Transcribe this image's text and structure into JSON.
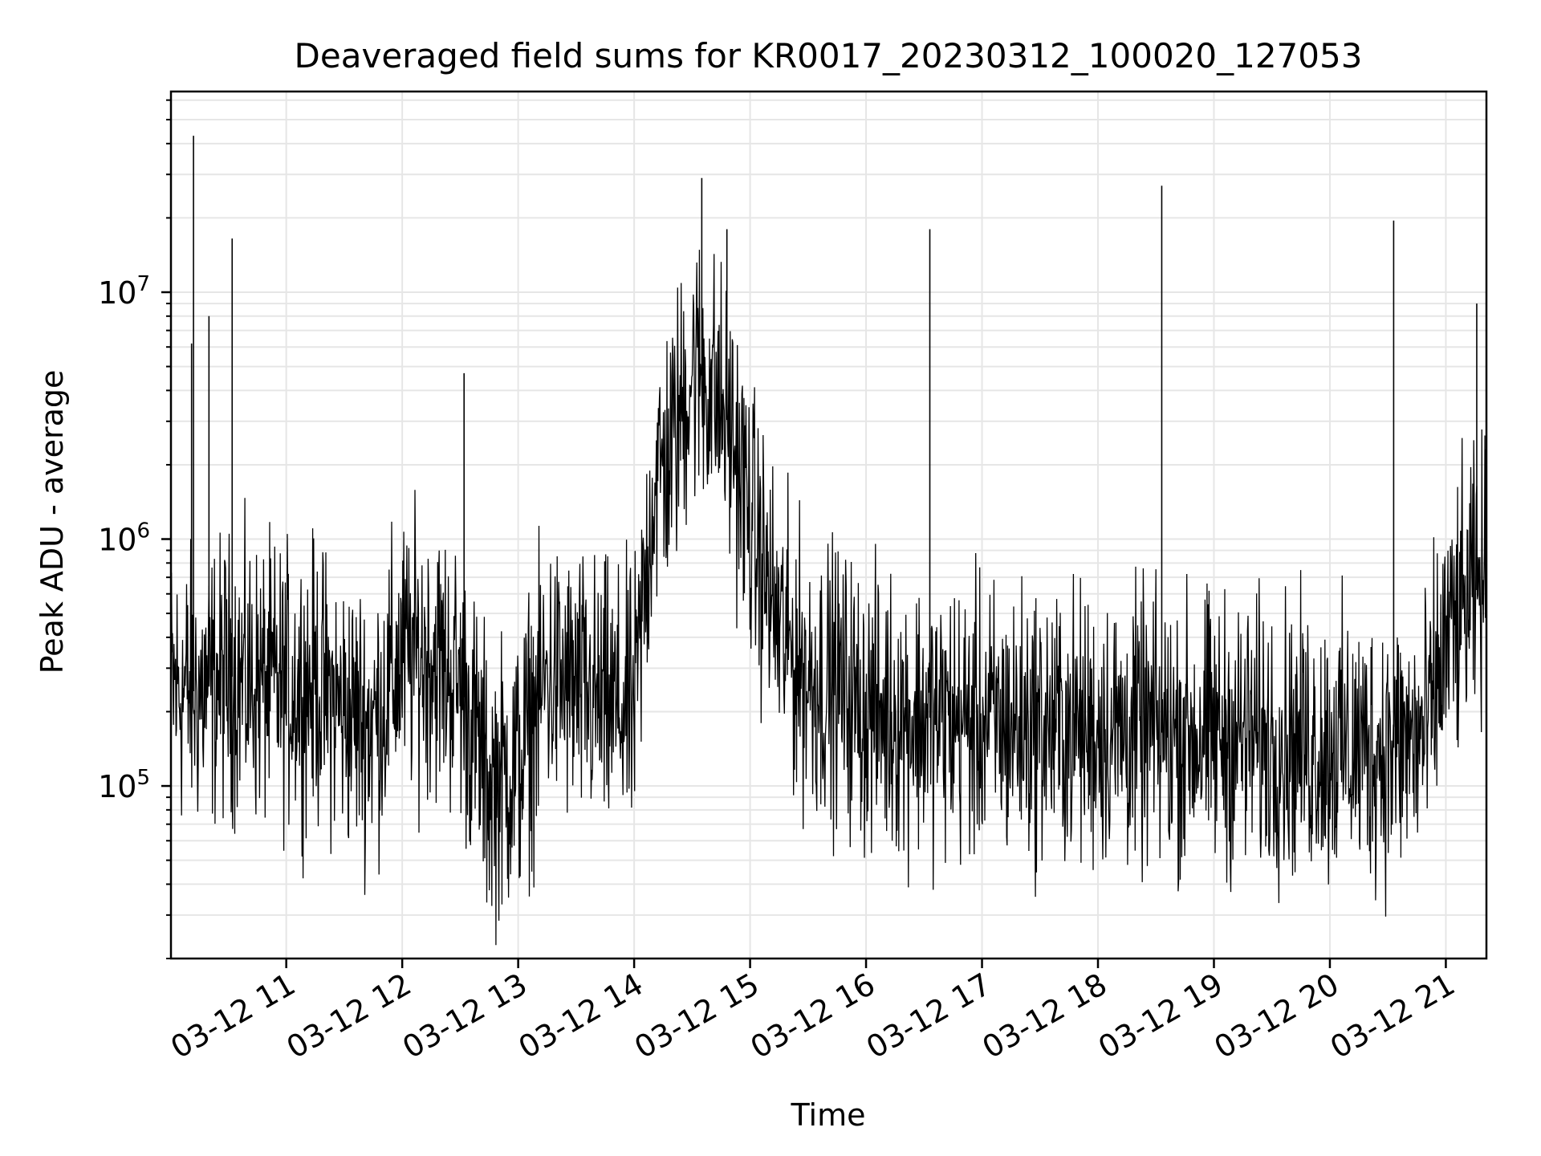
{
  "chart_data": {
    "type": "line",
    "title": "Deaveraged field sums for KR0017_20230312_100020_127053",
    "xlabel": "Time",
    "ylabel": "Peak ADU - average",
    "y_scale": "log",
    "ylim": [
      20000,
      65000000
    ],
    "xlim": [
      "2023-03-12T10:00:20",
      "2023-03-12T21:21:00"
    ],
    "grid": true,
    "legend": "none",
    "colors": {
      "line": "#000000",
      "grid": "#e6e6e6",
      "axes": "#000000",
      "background": "#ffffff"
    },
    "x_ticks": [
      {
        "t": "2023-03-12T11:00",
        "label": "03-12 11"
      },
      {
        "t": "2023-03-12T12:00",
        "label": "03-12 12"
      },
      {
        "t": "2023-03-12T13:00",
        "label": "03-12 13"
      },
      {
        "t": "2023-03-12T14:00",
        "label": "03-12 14"
      },
      {
        "t": "2023-03-12T15:00",
        "label": "03-12 15"
      },
      {
        "t": "2023-03-12T16:00",
        "label": "03-12 16"
      },
      {
        "t": "2023-03-12T17:00",
        "label": "03-12 17"
      },
      {
        "t": "2023-03-12T18:00",
        "label": "03-12 18"
      },
      {
        "t": "2023-03-12T19:00",
        "label": "03-12 19"
      },
      {
        "t": "2023-03-12T20:00",
        "label": "03-12 20"
      },
      {
        "t": "2023-03-12T21:00",
        "label": "03-12 21"
      }
    ],
    "y_ticks": [
      {
        "value": 100000,
        "base": "10",
        "exp": "5"
      },
      {
        "value": 1000000,
        "base": "10",
        "exp": "6"
      },
      {
        "value": 10000000,
        "base": "10",
        "exp": "7"
      }
    ],
    "series": [
      {
        "x": [
          "2023-03-12T10:00",
          "2023-03-12T10:15",
          "2023-03-12T10:30",
          "2023-03-12T10:45",
          "2023-03-12T11:00",
          "2023-03-12T11:15",
          "2023-03-12T11:30",
          "2023-03-12T11:45",
          "2023-03-12T12:00",
          "2023-03-12T12:15",
          "2023-03-12T12:30",
          "2023-03-12T12:45",
          "2023-03-12T13:00",
          "2023-03-12T13:15",
          "2023-03-12T13:30",
          "2023-03-12T13:45",
          "2023-03-12T14:00",
          "2023-03-12T14:10",
          "2023-03-12T14:20",
          "2023-03-12T14:30",
          "2023-03-12T14:40",
          "2023-03-12T14:50",
          "2023-03-12T15:00",
          "2023-03-12T15:15",
          "2023-03-12T15:30",
          "2023-03-12T15:45",
          "2023-03-12T16:00",
          "2023-03-12T16:30",
          "2023-03-12T17:00",
          "2023-03-12T17:30",
          "2023-03-12T18:00",
          "2023-03-12T18:30",
          "2023-03-12T19:00",
          "2023-03-12T19:30",
          "2023-03-12T20:00",
          "2023-03-12T20:30",
          "2023-03-12T20:50",
          "2023-03-12T21:00",
          "2023-03-12T21:10",
          "2023-03-12T21:20"
        ],
        "values": [
          250000,
          240000,
          280000,
          260000,
          250000,
          260000,
          200000,
          180000,
          330000,
          340000,
          260000,
          100000,
          120000,
          280000,
          240000,
          210000,
          200000,
          1600000,
          2400000,
          5000000,
          4200000,
          2800000,
          1200000,
          430000,
          270000,
          260000,
          200000,
          190000,
          180000,
          175000,
          170000,
          165000,
          160000,
          155000,
          145000,
          140000,
          160000,
          380000,
          520000,
          700000
        ]
      }
    ],
    "spikes": [
      {
        "t": "2023-03-12T10:11",
        "value": 6200000
      },
      {
        "t": "2023-03-12T10:12",
        "value": 43000000
      },
      {
        "t": "2023-03-12T10:20",
        "value": 8000000
      },
      {
        "t": "2023-03-12T10:32",
        "value": 16500000
      },
      {
        "t": "2023-03-12T12:32",
        "value": 4700000
      },
      {
        "t": "2023-03-12T14:35",
        "value": 29000000
      },
      {
        "t": "2023-03-12T14:48",
        "value": 18000000
      },
      {
        "t": "2023-03-12T16:33",
        "value": 18000000
      },
      {
        "t": "2023-03-12T18:33",
        "value": 27000000
      },
      {
        "t": "2023-03-12T20:33",
        "value": 19500000
      },
      {
        "t": "2023-03-12T21:16",
        "value": 9000000
      }
    ]
  }
}
